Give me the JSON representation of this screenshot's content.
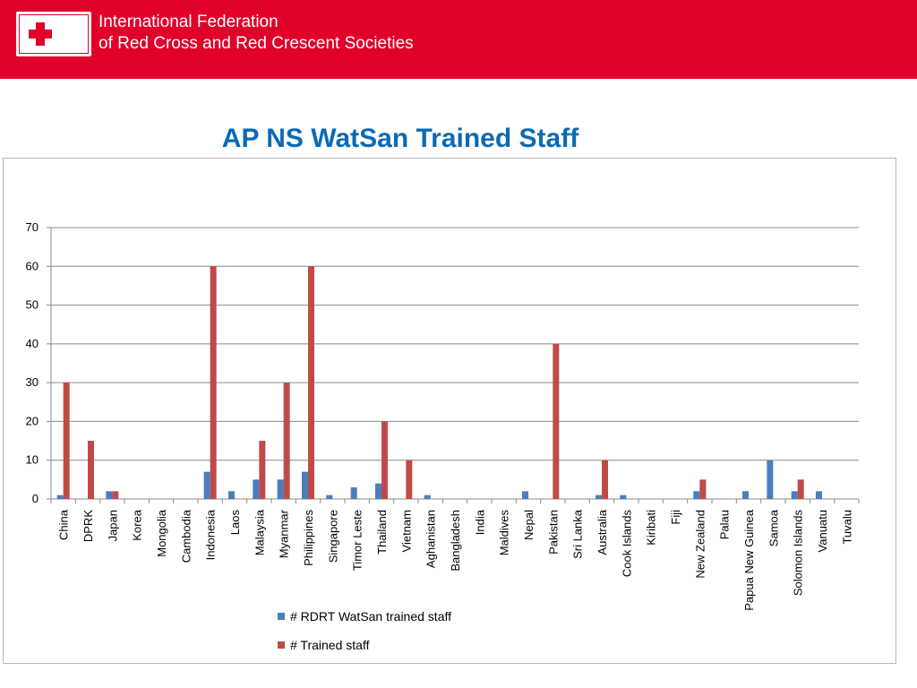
{
  "header": {
    "org_line1": "International Federation",
    "org_line2": "of Red Cross and Red Crescent Societies",
    "logo": "red-cross-red-crescent-logo",
    "band_color": "#e0002a"
  },
  "slide": {
    "title": "AP NS WatSan Trained Staff"
  },
  "chart_data": {
    "type": "bar",
    "title": "",
    "xlabel": "",
    "ylabel": "",
    "ylim": [
      0,
      70
    ],
    "yticks": [
      0,
      10,
      20,
      30,
      40,
      50,
      60,
      70
    ],
    "grid": true,
    "legend_position": "bottom",
    "categories": [
      "China",
      "DPRK",
      "Japan",
      "Korea",
      "Mongolia",
      "Cambodia",
      "Indonesia",
      "Laos",
      "Malaysia",
      "Myanmar",
      "Philippines",
      "Singapore",
      "Timor Leste",
      "Thailand",
      "Vietnam",
      "Aghanistan",
      "Bangladesh",
      "India",
      "Maldives",
      "Nepal",
      "Pakistan",
      "Sri Lanka",
      "Australia",
      "Cook Islands",
      "Kiribati",
      "Fiji",
      "New Zealand",
      "Palau",
      "Papua New Guinea",
      "Samoa",
      "Solomon Islands",
      "Vanuatu",
      "Tuvalu"
    ],
    "series": [
      {
        "name": "# RDRT WatSan trained staff",
        "color": "#4a7ebb",
        "values": [
          1,
          0,
          2,
          0,
          0,
          0,
          7,
          2,
          5,
          5,
          7,
          1,
          3,
          4,
          0,
          1,
          0,
          0,
          0,
          2,
          0,
          0,
          1,
          1,
          0,
          0,
          2,
          0,
          2,
          10,
          2,
          2,
          0
        ]
      },
      {
        "name": "# Trained staff",
        "color": "#be4b48",
        "values": [
          30,
          15,
          2,
          0,
          0,
          0,
          60,
          0,
          15,
          30,
          60,
          0,
          0,
          20,
          10,
          0,
          0,
          0,
          0,
          0,
          40,
          0,
          10,
          0,
          0,
          0,
          5,
          0,
          0,
          0,
          5,
          0,
          0
        ]
      }
    ]
  }
}
